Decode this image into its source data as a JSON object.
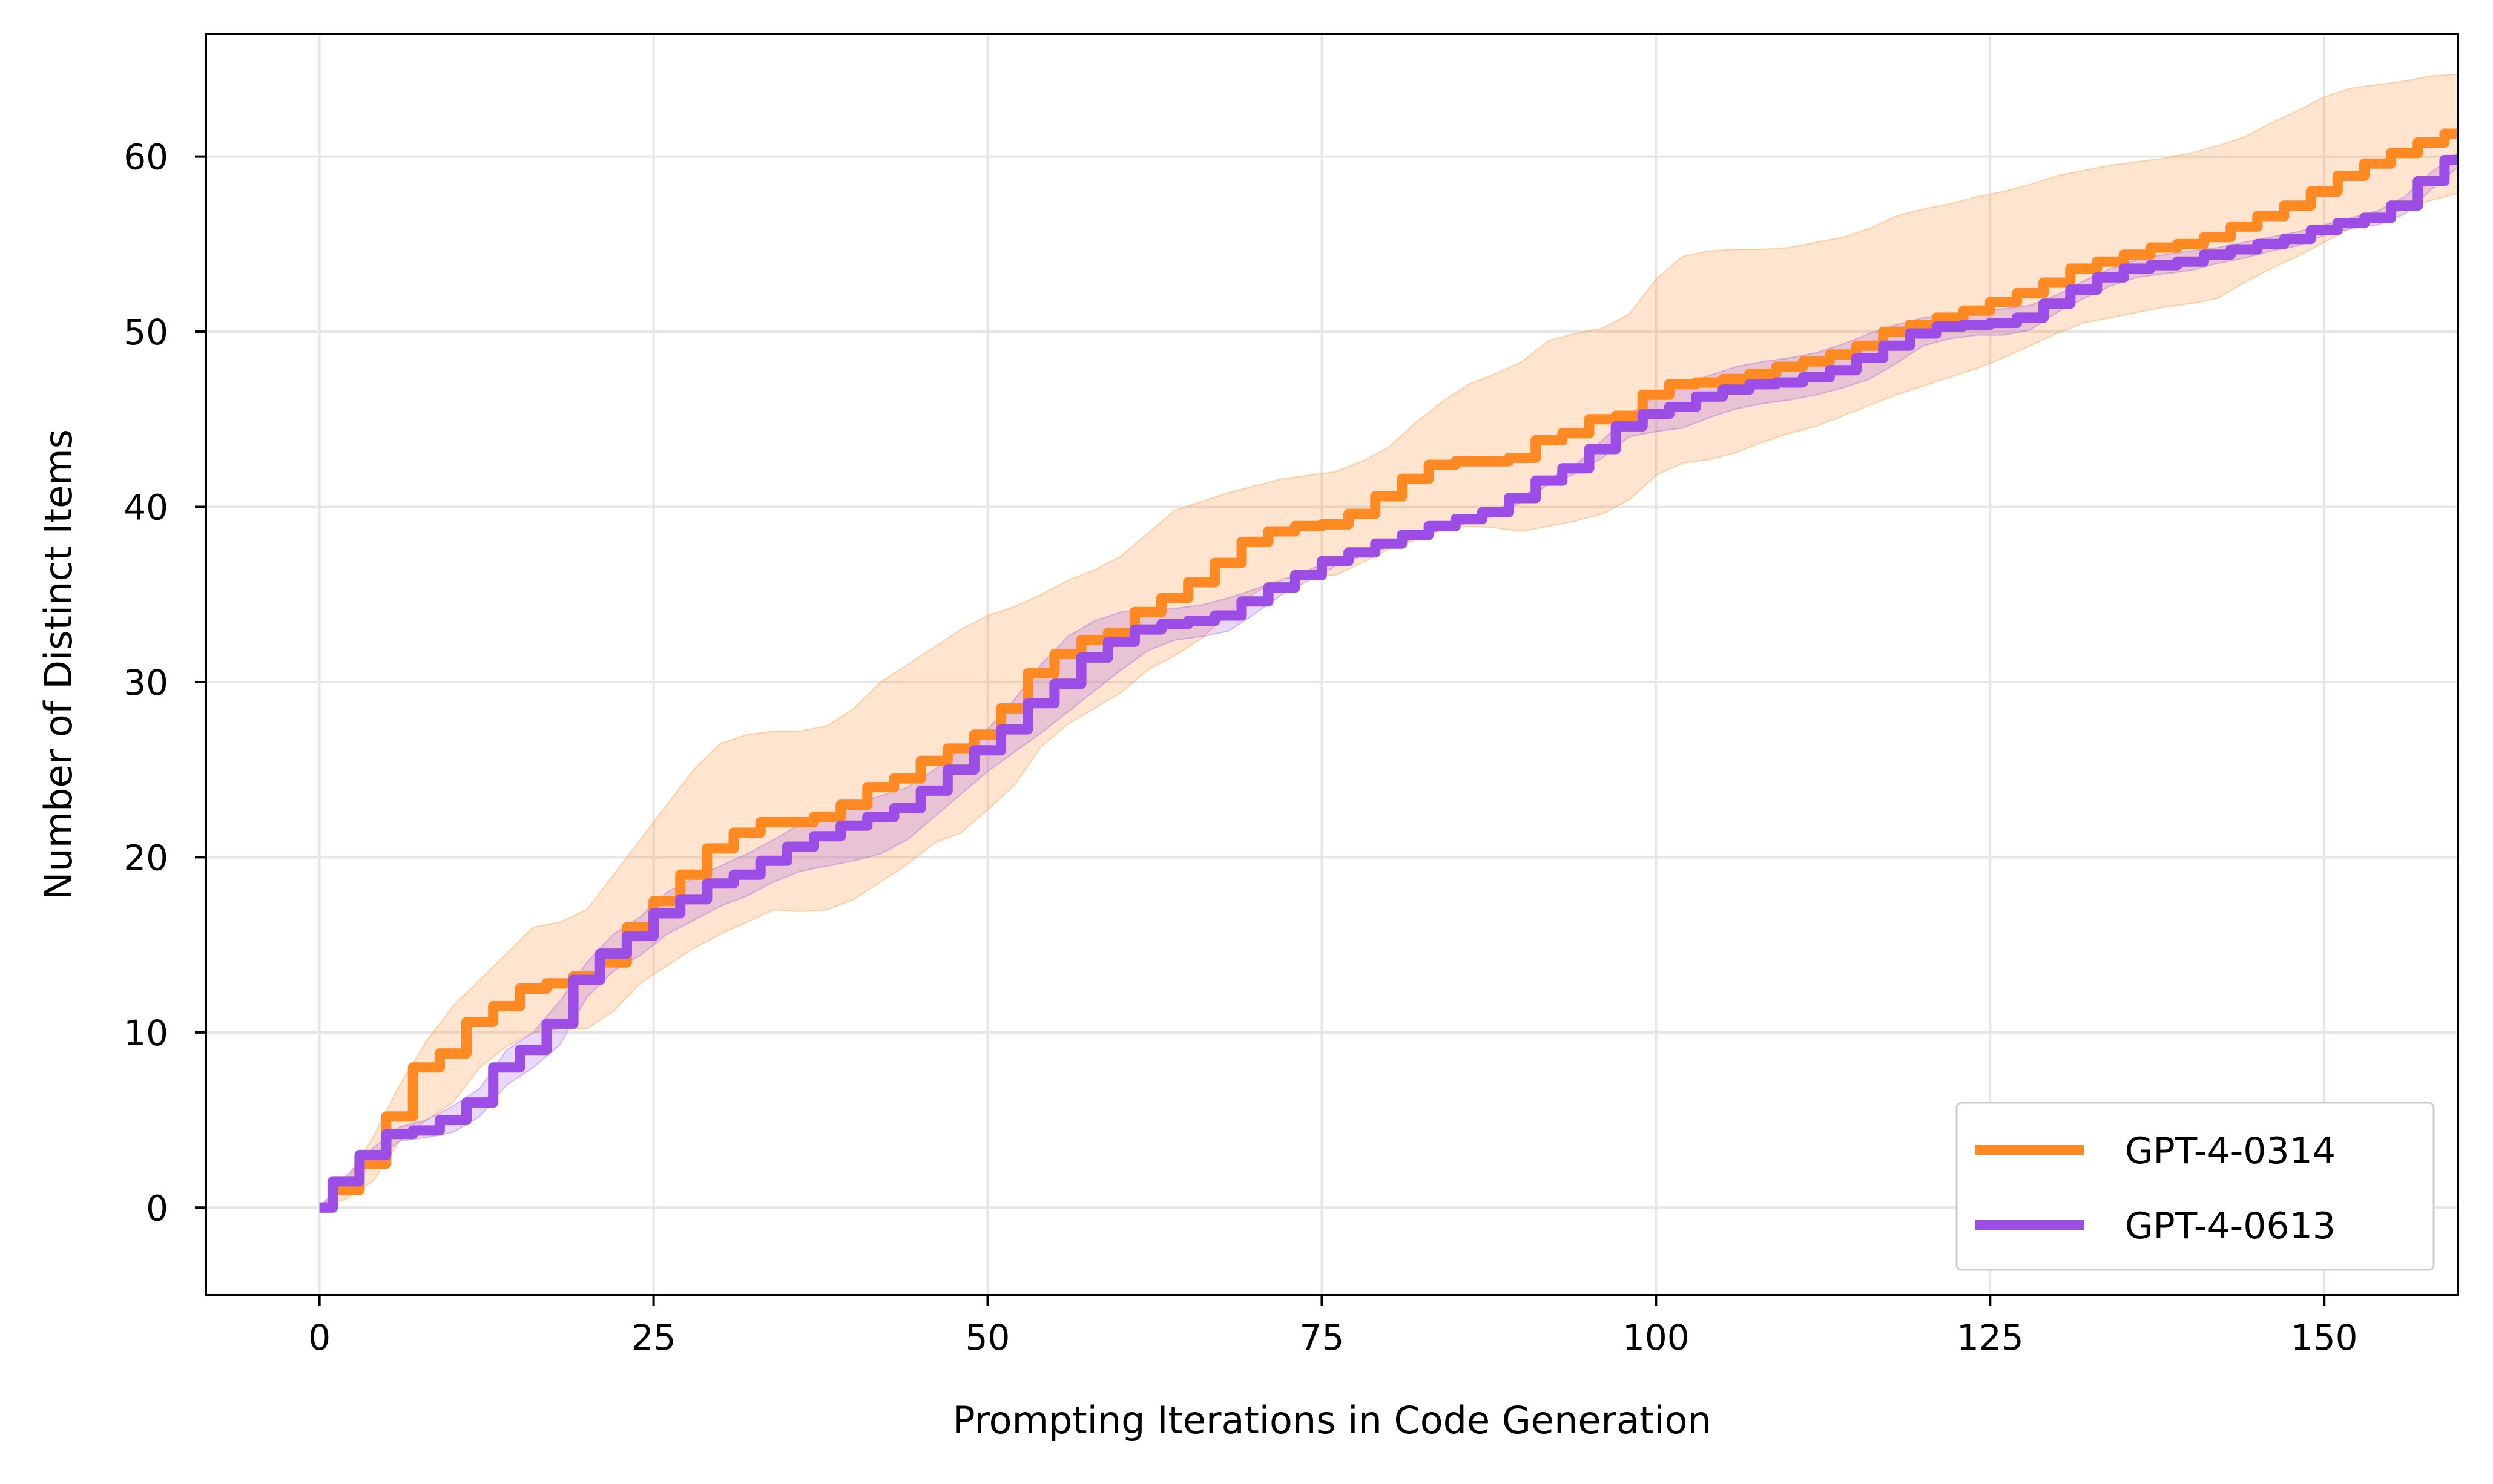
{
  "chart_data": {
    "type": "line",
    "xlabel": "Prompting Iterations in Code Generation",
    "ylabel": "Number of Distinct Items",
    "xlim": [
      -8.5,
      160
    ],
    "ylim": [
      -5,
      67
    ],
    "xticks": [
      0,
      25,
      50,
      75,
      100,
      125,
      150
    ],
    "yticks": [
      0,
      10,
      20,
      30,
      40,
      50,
      60
    ],
    "grid": true,
    "legend_position": "lower right",
    "series": [
      {
        "name": "GPT-4-0314",
        "color": "#ff8a24",
        "x": [
          0,
          2,
          4,
          6,
          8,
          10,
          12,
          14,
          16,
          18,
          20,
          22,
          24,
          26,
          28,
          30,
          32,
          34,
          36,
          38,
          40,
          42,
          44,
          46,
          48,
          50,
          52,
          54,
          56,
          58,
          60,
          62,
          64,
          66,
          68,
          70,
          72,
          74,
          76,
          78,
          80,
          82,
          84,
          86,
          88,
          90,
          92,
          94,
          96,
          98,
          100,
          102,
          104,
          106,
          108,
          110,
          112,
          114,
          116,
          118,
          120,
          122,
          124,
          126,
          128,
          130,
          132,
          134,
          136,
          138,
          140,
          142,
          144,
          146,
          148,
          150,
          152,
          154,
          156,
          158,
          160
        ],
        "values": [
          0,
          1,
          2.5,
          5.2,
          8,
          8.8,
          10.6,
          11.5,
          12.5,
          12.8,
          13.2,
          14,
          16,
          17.5,
          19,
          20.5,
          21.4,
          22,
          22,
          22.3,
          23,
          24,
          24.5,
          25.5,
          26.2,
          27,
          28.5,
          30.5,
          31.6,
          32.4,
          32.8,
          34,
          34.8,
          35.7,
          36.8,
          38,
          38.6,
          38.9,
          39,
          39.6,
          40.6,
          41.6,
          42.4,
          42.6,
          42.6,
          42.8,
          43.8,
          44.2,
          45,
          45.2,
          46.4,
          47,
          47.1,
          47.3,
          47.6,
          48,
          48.3,
          48.7,
          49.2,
          50,
          50.4,
          50.8,
          51.2,
          51.7,
          52.2,
          52.8,
          53.6,
          54,
          54.4,
          54.8,
          55,
          55.4,
          56,
          56.6,
          57.2,
          58,
          58.9,
          59.6,
          60.2,
          60.8,
          61.3
        ],
        "upper": [
          0,
          1.5,
          4,
          7,
          9.5,
          11.5,
          13,
          14.5,
          16,
          16.3,
          17,
          19,
          21,
          23,
          25,
          26.5,
          27,
          27.2,
          27.2,
          27.5,
          28.5,
          30,
          31,
          32,
          33,
          33.8,
          34.3,
          35,
          35.8,
          36.4,
          37.2,
          38.5,
          39.8,
          40.3,
          40.8,
          41.2,
          41.6,
          41.8,
          42,
          42.6,
          43.4,
          44.8,
          46,
          47,
          47.6,
          48.3,
          49.5,
          49.9,
          50.2,
          51,
          53,
          54.3,
          54.6,
          54.7,
          54.7,
          54.8,
          55.1,
          55.4,
          55.9,
          56.6,
          57,
          57.3,
          57.7,
          58,
          58.4,
          58.9,
          59.2,
          59.5,
          59.7,
          59.9,
          60.2,
          60.6,
          61.1,
          61.9,
          62.6,
          63.4,
          63.9,
          64.1,
          64.3,
          64.6,
          64.7
        ],
        "lower": [
          0,
          0.5,
          1.5,
          3.8,
          5,
          6,
          8,
          9.2,
          10,
          10.2,
          10.2,
          11.2,
          12.8,
          13.8,
          14.8,
          15.6,
          16.3,
          17,
          16.9,
          17,
          17.6,
          18.6,
          19.6,
          20.8,
          21.4,
          22.7,
          24.1,
          26.3,
          27.6,
          28.5,
          29.4,
          30.7,
          31.5,
          32.5,
          33.9,
          35.1,
          35.9,
          36,
          36.1,
          36.8,
          37.6,
          38.1,
          38.7,
          38.9,
          38.8,
          38.6,
          38.9,
          39.2,
          39.6,
          40.4,
          41.8,
          42.5,
          42.7,
          43.1,
          43.7,
          44.2,
          44.6,
          45.2,
          45.8,
          46.4,
          46.9,
          47.4,
          47.9,
          48.5,
          49.2,
          49.9,
          50.5,
          50.8,
          51.1,
          51.4,
          51.6,
          51.9,
          52.8,
          53.6,
          54.3,
          55.1,
          55.9,
          56.5,
          57,
          57.5,
          57.9
        ]
      },
      {
        "name": "GPT-4-0613",
        "color": "#9b4de6",
        "x": [
          0,
          2,
          4,
          6,
          8,
          10,
          12,
          14,
          16,
          18,
          20,
          22,
          24,
          26,
          28,
          30,
          32,
          34,
          36,
          38,
          40,
          42,
          44,
          46,
          48,
          50,
          52,
          54,
          56,
          58,
          60,
          62,
          64,
          66,
          68,
          70,
          72,
          74,
          76,
          78,
          80,
          82,
          84,
          86,
          88,
          90,
          92,
          94,
          96,
          98,
          100,
          102,
          104,
          106,
          108,
          110,
          112,
          114,
          116,
          118,
          120,
          122,
          124,
          126,
          128,
          130,
          132,
          134,
          136,
          138,
          140,
          142,
          144,
          146,
          148,
          150,
          152,
          154,
          156,
          158,
          160
        ],
        "values": [
          0,
          1.5,
          3,
          4.2,
          4.4,
          5,
          6,
          8,
          9,
          10.5,
          13,
          14.5,
          15.5,
          16.8,
          17.6,
          18.5,
          19,
          19.8,
          20.6,
          21.2,
          21.8,
          22.3,
          22.8,
          23.8,
          25,
          26.1,
          27.3,
          28.8,
          29.9,
          31.4,
          32.3,
          33,
          33.3,
          33.5,
          33.8,
          34.6,
          35.4,
          36.1,
          36.9,
          37.4,
          37.9,
          38.4,
          38.9,
          39.3,
          39.7,
          40.5,
          41.5,
          42.2,
          43.3,
          44.6,
          45.3,
          45.7,
          46.3,
          46.7,
          47,
          47.1,
          47.4,
          47.8,
          48.5,
          49.2,
          49.9,
          50.3,
          50.4,
          50.5,
          50.8,
          51.6,
          52.4,
          53.1,
          53.6,
          53.8,
          54,
          54.4,
          54.7,
          55,
          55.3,
          55.8,
          56.2,
          56.5,
          57.2,
          58.6,
          59.8
        ],
        "upper": [
          0,
          1.8,
          3.4,
          4.6,
          5,
          5.8,
          6.8,
          9,
          10,
          11.8,
          14,
          15.6,
          16.6,
          18,
          18.8,
          19.5,
          20.2,
          21,
          21.9,
          22.4,
          23,
          23.5,
          24,
          25,
          26.2,
          27.3,
          29,
          31,
          32.6,
          33.5,
          34,
          34.1,
          34.2,
          34.4,
          34.8,
          35.3,
          35.8,
          36.4,
          37,
          37.5,
          38,
          38.5,
          39,
          39.4,
          39.8,
          40.6,
          41.6,
          42.4,
          43.8,
          45.3,
          46.3,
          47,
          47.5,
          48,
          48.3,
          48.5,
          48.8,
          49.3,
          49.9,
          50.4,
          50.8,
          51,
          51.2,
          51.3,
          51.5,
          52.1,
          52.9,
          53.6,
          54.1,
          54.4,
          54.6,
          54.8,
          55.1,
          55.4,
          55.7,
          56.1,
          56.5,
          56.9,
          57.7,
          59.1,
          60.2
        ],
        "lower": [
          0,
          1.2,
          2.6,
          3.8,
          4,
          4.3,
          5.2,
          7,
          8,
          9.3,
          12,
          13.5,
          14.4,
          15.6,
          16.4,
          17.2,
          17.8,
          18.6,
          19.2,
          19.5,
          19.8,
          20.2,
          21,
          22.3,
          23.6,
          24.9,
          26,
          27.1,
          28.3,
          29.5,
          30.7,
          31.8,
          32.4,
          32.6,
          32.9,
          33.9,
          35,
          35.8,
          36.6,
          37.2,
          37.7,
          38.2,
          38.7,
          39.1,
          39.5,
          40.3,
          41.3,
          41.9,
          42.8,
          44,
          44.3,
          44.5,
          45.1,
          45.6,
          45.9,
          46.1,
          46.4,
          46.8,
          47.3,
          48.2,
          49.2,
          49.6,
          49.8,
          49.8,
          50.1,
          51.1,
          51.9,
          52.6,
          53.1,
          53.3,
          53.5,
          53.9,
          54.2,
          54.6,
          54.9,
          55.5,
          55.9,
          56.1,
          56.7,
          58.1,
          59.4
        ]
      }
    ]
  }
}
